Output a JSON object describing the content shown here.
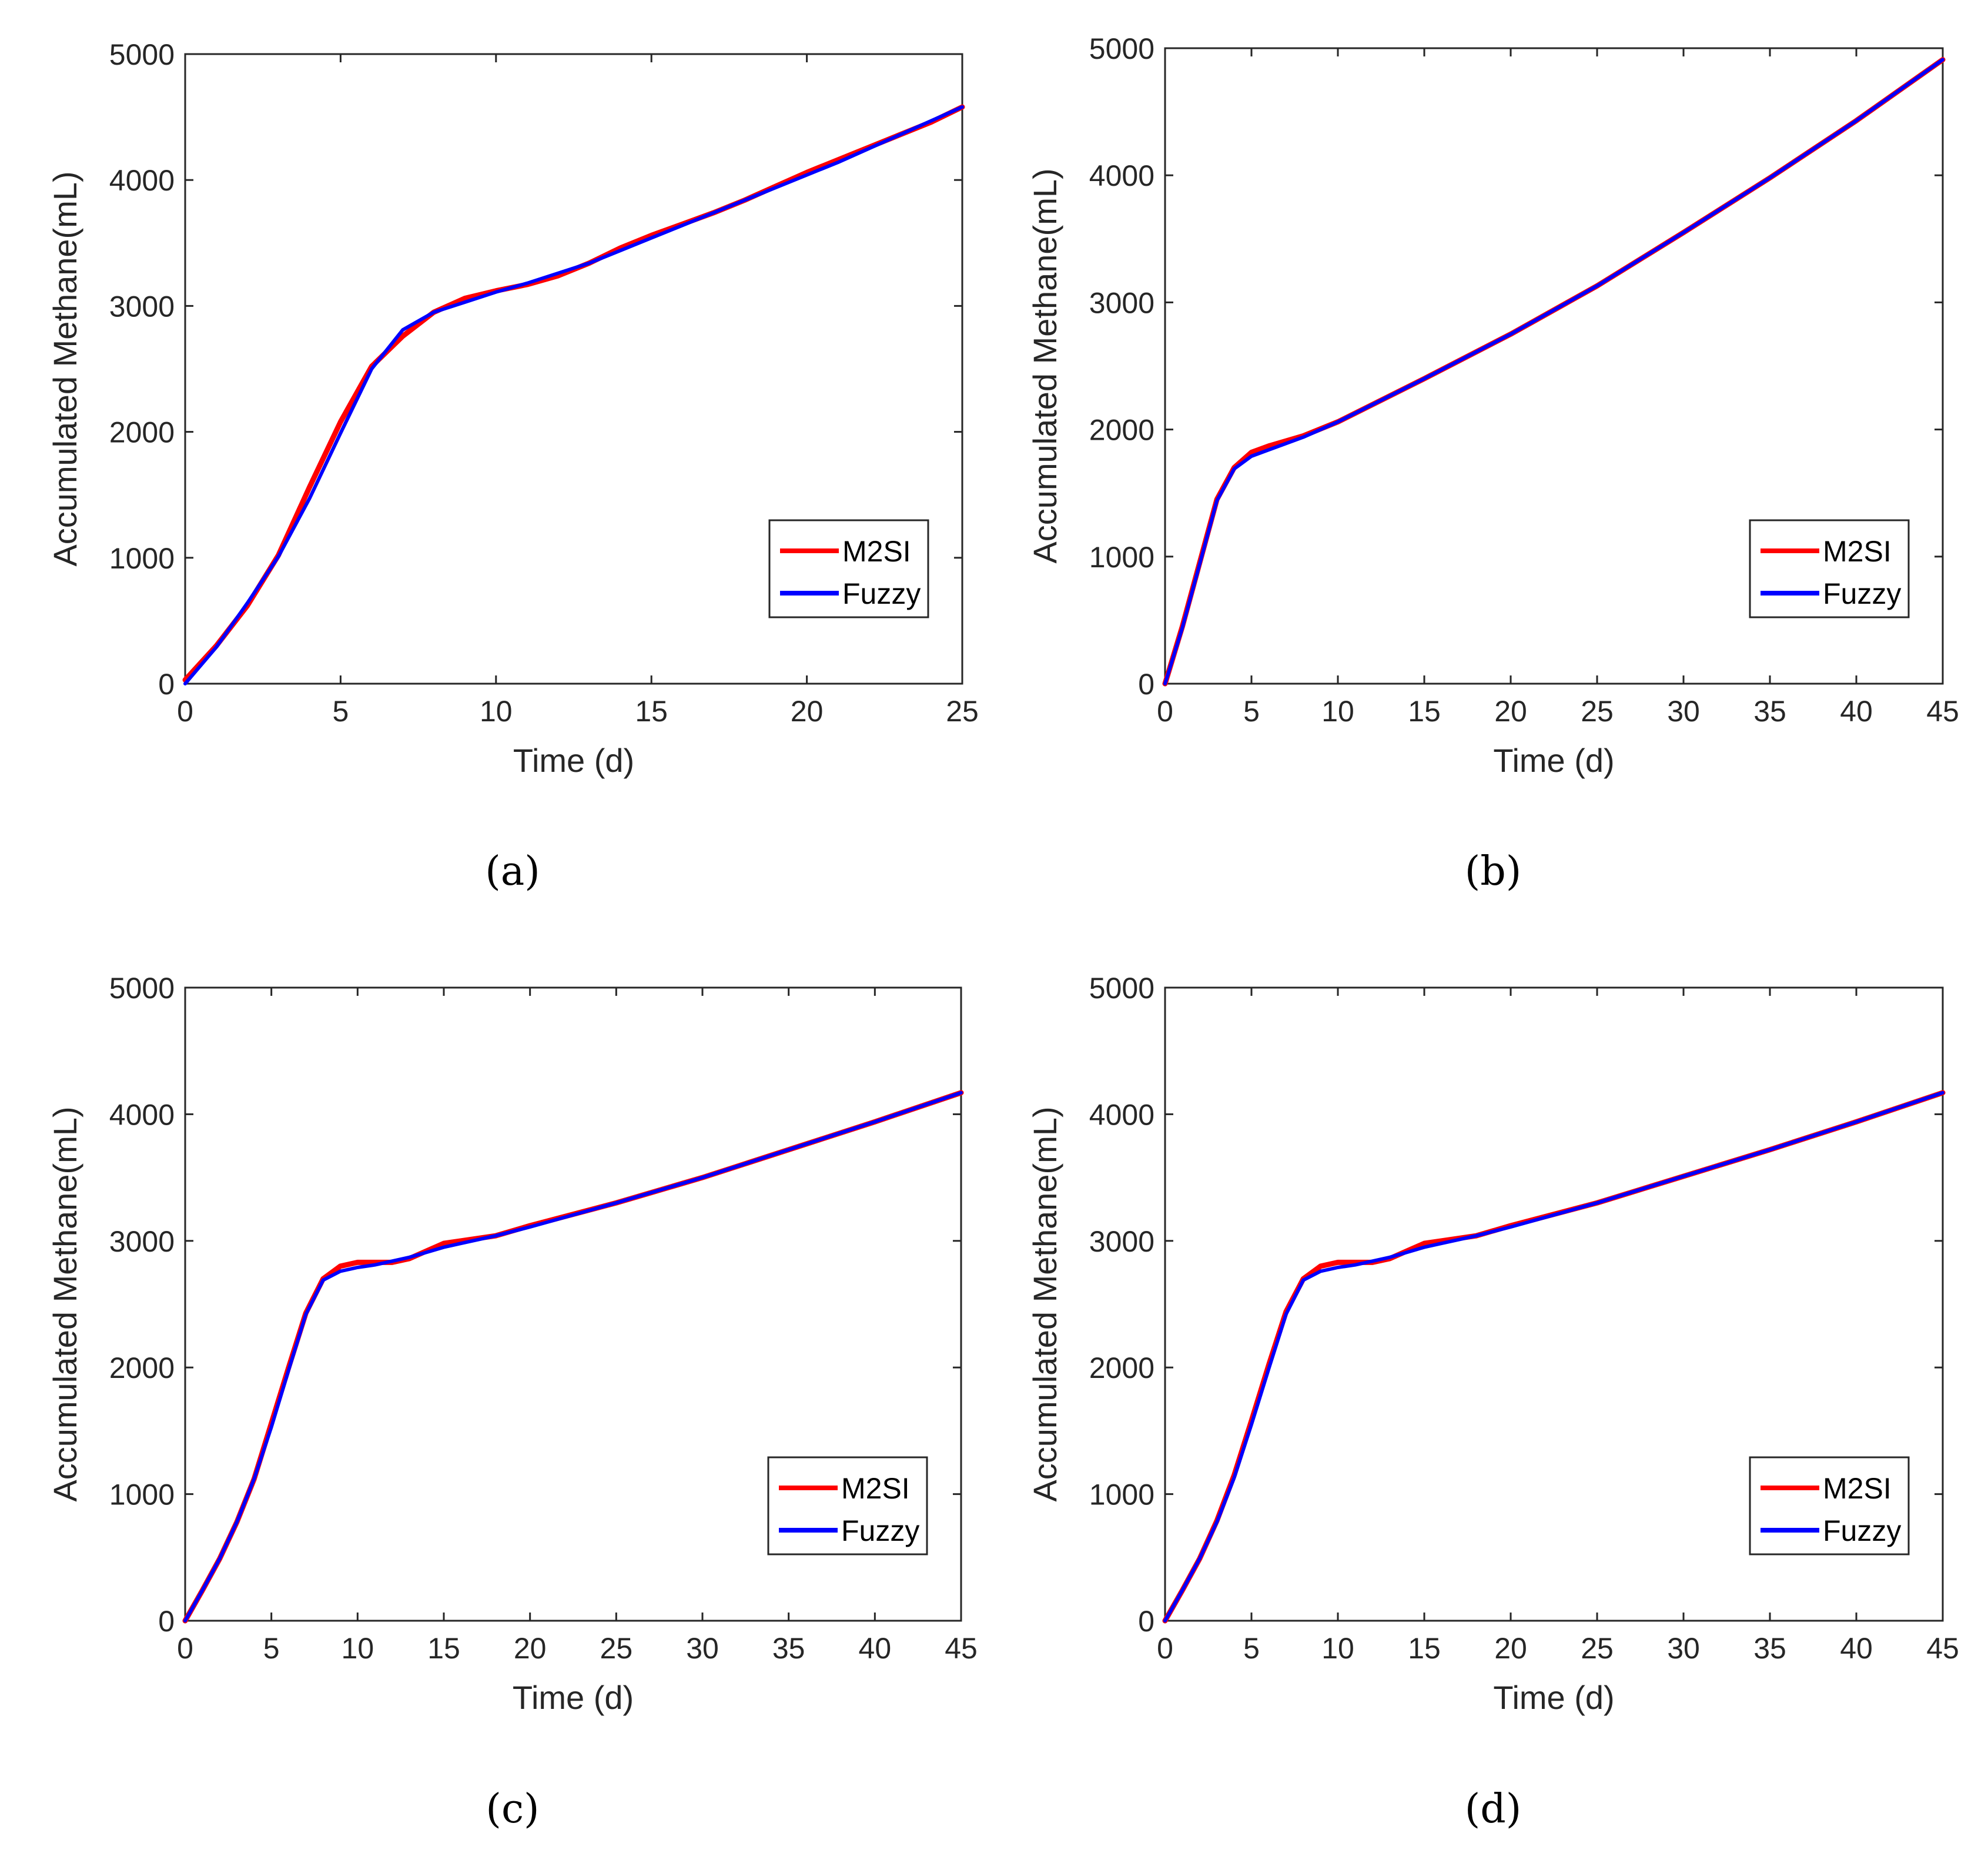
{
  "colors": {
    "m2si": "#ff0000",
    "fuzzy": "#0000ff",
    "axis": "#262626"
  },
  "chart_data": [
    {
      "panel": "(a)",
      "type": "line",
      "xlabel": "Time (d)",
      "ylabel": "Accumulated Methane(mL)",
      "xlim": [
        0,
        25
      ],
      "ylim": [
        0,
        5000
      ],
      "xticks": [
        0,
        5,
        10,
        15,
        20,
        25
      ],
      "yticks": [
        0,
        1000,
        2000,
        3000,
        4000,
        5000
      ],
      "legend_position": "bottom-right",
      "series": [
        {
          "name": "M2SI",
          "color": "#ff0000",
          "x": [
            0,
            1,
            2,
            3,
            4,
            5,
            6,
            7,
            8,
            9,
            10,
            11,
            12,
            13,
            14,
            15,
            16,
            17,
            18,
            19,
            20,
            21,
            22,
            23,
            24,
            25
          ],
          "y": [
            30,
            300,
            620,
            1020,
            1560,
            2080,
            2520,
            2760,
            2950,
            3060,
            3120,
            3170,
            3240,
            3340,
            3460,
            3560,
            3650,
            3740,
            3840,
            3950,
            4060,
            4160,
            4260,
            4360,
            4460,
            4580
          ]
        },
        {
          "name": "Fuzzy",
          "color": "#0000ff",
          "x": [
            0,
            1,
            2,
            3,
            4,
            5,
            6,
            7,
            8,
            9,
            10,
            11,
            12,
            13,
            14,
            15,
            16,
            17,
            18,
            19,
            20,
            21,
            22,
            23,
            24,
            25
          ],
          "y": [
            0,
            290,
            640,
            1010,
            1470,
            1990,
            2500,
            2810,
            2950,
            3030,
            3110,
            3180,
            3260,
            3340,
            3440,
            3540,
            3640,
            3740,
            3840,
            3940,
            4040,
            4140,
            4250,
            4360,
            4470,
            4580
          ]
        }
      ]
    },
    {
      "panel": "(b)",
      "type": "line",
      "xlabel": "Time (d)",
      "ylabel": "Accumulated Methane(mL)",
      "xlim": [
        0,
        45
      ],
      "ylim": [
        0,
        5000
      ],
      "xticks": [
        0,
        5,
        10,
        15,
        20,
        25,
        30,
        35,
        40,
        45
      ],
      "yticks": [
        0,
        1000,
        2000,
        3000,
        4000,
        5000
      ],
      "legend_position": "bottom-right",
      "series": [
        {
          "name": "M2SI",
          "color": "#ff0000",
          "x": [
            0,
            1,
            2,
            3,
            4,
            5,
            6,
            8,
            10,
            15,
            20,
            25,
            30,
            35,
            40,
            45
          ],
          "y": [
            0,
            450,
            950,
            1450,
            1700,
            1820,
            1870,
            1950,
            2060,
            2400,
            2750,
            3130,
            3550,
            3980,
            4430,
            4910
          ]
        },
        {
          "name": "Fuzzy",
          "color": "#0000ff",
          "x": [
            0,
            1,
            2,
            3,
            4,
            5,
            6,
            8,
            10,
            15,
            20,
            25,
            30,
            35,
            40,
            45
          ],
          "y": [
            0,
            440,
            940,
            1440,
            1690,
            1790,
            1840,
            1940,
            2060,
            2400,
            2750,
            3130,
            3550,
            3980,
            4430,
            4910
          ]
        }
      ]
    },
    {
      "panel": "(c)",
      "type": "line",
      "xlabel": "Time (d)",
      "ylabel": "Accumulated Methane(mL)",
      "xlim": [
        0,
        45
      ],
      "ylim": [
        0,
        5000
      ],
      "xticks": [
        0,
        5,
        10,
        15,
        20,
        25,
        30,
        35,
        40,
        45
      ],
      "yticks": [
        0,
        1000,
        2000,
        3000,
        4000,
        5000
      ],
      "legend_position": "bottom-right",
      "series": [
        {
          "name": "M2SI",
          "color": "#ff0000",
          "x": [
            0,
            1,
            2,
            3,
            4,
            5,
            6,
            7,
            8,
            9,
            10,
            11,
            12,
            13,
            14,
            15,
            16,
            18,
            20,
            25,
            30,
            35,
            40,
            45
          ],
          "y": [
            0,
            240,
            490,
            780,
            1120,
            1560,
            2000,
            2430,
            2700,
            2800,
            2830,
            2830,
            2830,
            2860,
            2920,
            2980,
            3000,
            3040,
            3120,
            3300,
            3500,
            3720,
            3940,
            4170
          ]
        },
        {
          "name": "Fuzzy",
          "color": "#0000ff",
          "x": [
            0,
            1,
            2,
            3,
            4,
            5,
            6,
            7,
            8,
            9,
            10,
            11,
            12,
            13,
            14,
            15,
            16,
            18,
            20,
            25,
            30,
            35,
            40,
            45
          ],
          "y": [
            0,
            240,
            490,
            780,
            1120,
            1530,
            1980,
            2420,
            2690,
            2760,
            2790,
            2810,
            2840,
            2870,
            2910,
            2950,
            2980,
            3040,
            3110,
            3300,
            3500,
            3720,
            3940,
            4170
          ]
        }
      ]
    },
    {
      "panel": "(d)",
      "type": "line",
      "xlabel": "Time (d)",
      "ylabel": "Accumulated Methane(mL)",
      "xlim": [
        0,
        45
      ],
      "ylim": [
        0,
        5000
      ],
      "xticks": [
        0,
        5,
        10,
        15,
        20,
        25,
        30,
        35,
        40,
        45
      ],
      "yticks": [
        0,
        1000,
        2000,
        3000,
        4000,
        5000
      ],
      "legend_position": "bottom-right",
      "series": [
        {
          "name": "M2SI",
          "color": "#ff0000",
          "x": [
            0,
            1,
            2,
            3,
            4,
            5,
            6,
            7,
            8,
            9,
            10,
            11,
            12,
            13,
            14,
            15,
            16,
            18,
            20,
            25,
            30,
            35,
            40,
            45
          ],
          "y": [
            0,
            240,
            490,
            790,
            1150,
            1580,
            2020,
            2440,
            2700,
            2800,
            2830,
            2830,
            2830,
            2860,
            2920,
            2980,
            3000,
            3040,
            3120,
            3300,
            3510,
            3720,
            3940,
            4170
          ]
        },
        {
          "name": "Fuzzy",
          "color": "#0000ff",
          "x": [
            0,
            1,
            2,
            3,
            4,
            5,
            6,
            7,
            8,
            9,
            10,
            11,
            12,
            13,
            14,
            15,
            16,
            18,
            20,
            25,
            30,
            35,
            40,
            45
          ],
          "y": [
            0,
            240,
            490,
            780,
            1130,
            1550,
            1990,
            2420,
            2690,
            2760,
            2790,
            2810,
            2840,
            2870,
            2910,
            2950,
            2980,
            3040,
            3110,
            3300,
            3510,
            3720,
            3940,
            4170
          ]
        }
      ]
    }
  ]
}
